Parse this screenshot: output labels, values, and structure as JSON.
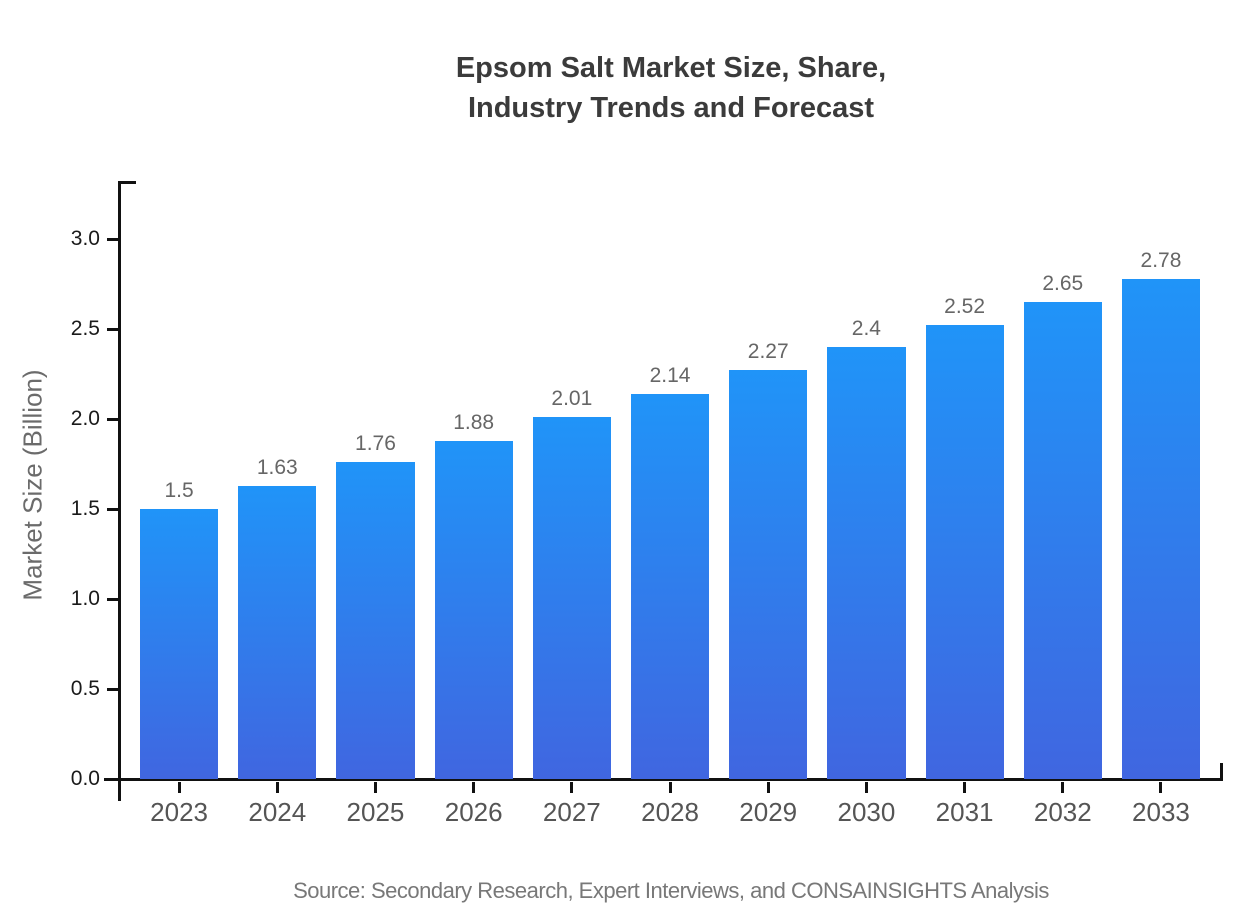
{
  "title": {
    "line1": "Epsom Salt Market Size, Share,",
    "line2": "Industry Trends and Forecast"
  },
  "y_axis": {
    "label": "Market Size (Billion)",
    "tick_labels": [
      "0.0",
      "0.5",
      "1.0",
      "1.5",
      "2.0",
      "2.5",
      "3.0"
    ],
    "tick_values": [
      0,
      0.5,
      1,
      1.5,
      2,
      2.5,
      3
    ]
  },
  "source_note": "Source: Secondary Research, Expert Interviews, and CONSAINSIGHTS Analysis",
  "colors": {
    "bar_top": "#2094F8",
    "bar_bottom": "#4066E0",
    "axis": "#111111",
    "title_text": "#3b3b3b",
    "value_label_text": "#666666",
    "year_label_text": "#555555",
    "ytick_text": "#1a1a1a",
    "source_text": "#787878"
  },
  "chart_data": {
    "type": "bar",
    "title": "Epsom Salt Market Size, Share, Industry Trends and Forecast",
    "categories": [
      "2023",
      "2024",
      "2025",
      "2026",
      "2027",
      "2028",
      "2029",
      "2030",
      "2031",
      "2032",
      "2033"
    ],
    "values": [
      1.5,
      1.63,
      1.76,
      1.88,
      2.01,
      2.14,
      2.27,
      2.4,
      2.52,
      2.65,
      2.78
    ],
    "value_labels": [
      "1.5",
      "1.63",
      "1.76",
      "1.88",
      "2.01",
      "2.14",
      "2.27",
      "2.4",
      "2.52",
      "2.65",
      "2.78"
    ],
    "xlabel": "",
    "ylabel": "Market Size (Billion)",
    "ylim": [
      0,
      3.33
    ],
    "yticks": [
      0,
      0.5,
      1,
      1.5,
      2,
      2.5,
      3
    ],
    "grid": false,
    "legend": "none",
    "bar_color_gradient": [
      "#2094F8",
      "#4066E0"
    ]
  }
}
